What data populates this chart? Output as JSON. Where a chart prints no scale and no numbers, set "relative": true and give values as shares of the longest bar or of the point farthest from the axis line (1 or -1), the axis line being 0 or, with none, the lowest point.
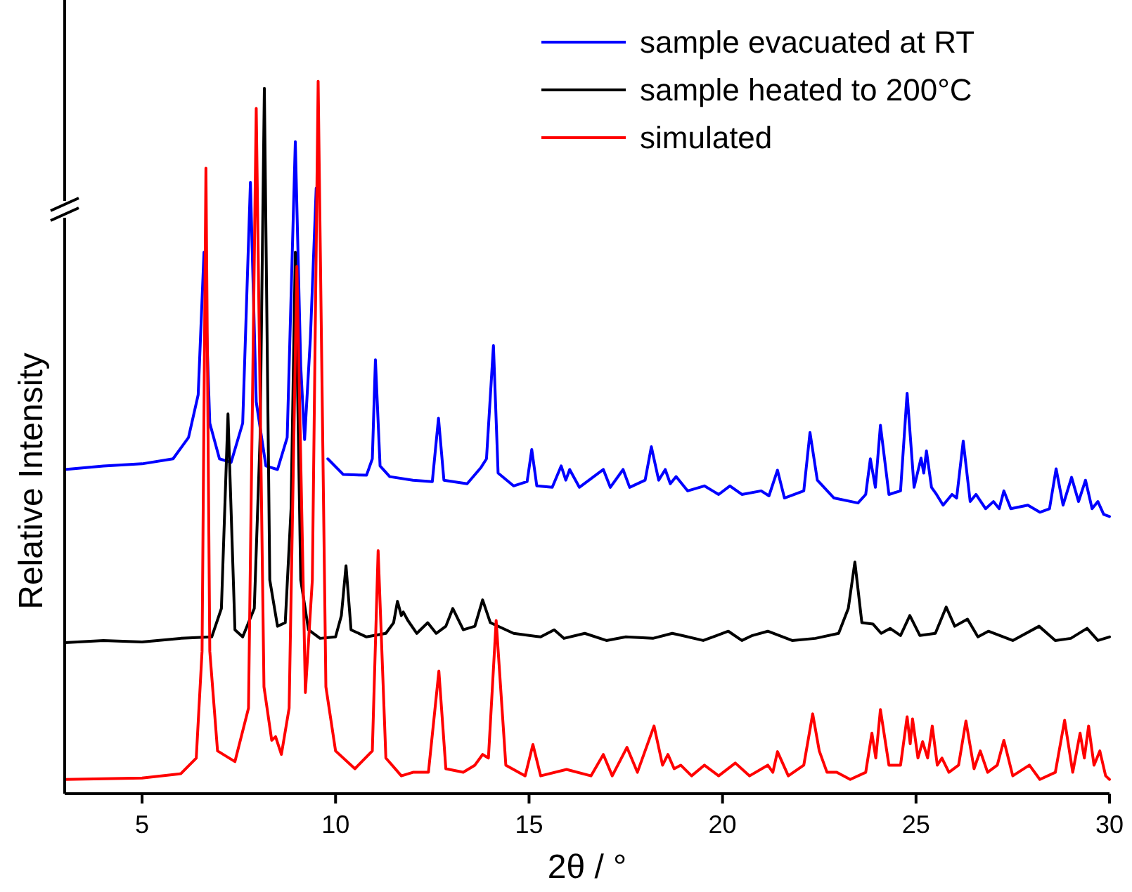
{
  "chart_data": {
    "type": "line",
    "relative": true,
    "xlabel": "2θ / °",
    "ylabel": "Relative Intensity",
    "xlim": [
      3,
      30
    ],
    "xticks": [
      5,
      10,
      15,
      20,
      25,
      30
    ],
    "legend": "top right",
    "tick_labels": "x",
    "series": [
      {
        "name": "sample evacuated at RT",
        "color": "#0000ff",
        "x": [
          3,
          4,
          5,
          5.8,
          6.2,
          6.45,
          6.6,
          6.75,
          7.0,
          7.3,
          7.6,
          7.8,
          7.95,
          8.2,
          8.5,
          8.75,
          8.96,
          9.1,
          9.2,
          9.35,
          9.5,
          9.65,
          9.8,
          10.2,
          10.8,
          10.95,
          11.03,
          11.15,
          11.4,
          12.0,
          12.5,
          12.66,
          12.8,
          13.4,
          13.76,
          13.9,
          14.08,
          14.2,
          14.6,
          14.95,
          15.07,
          15.2,
          15.6,
          15.83,
          15.95,
          16.05,
          16.3,
          16.92,
          17.1,
          17.43,
          17.6,
          18.0,
          18.16,
          18.35,
          18.52,
          18.65,
          18.8,
          19.1,
          19.53,
          19.9,
          20.19,
          20.5,
          21.0,
          21.2,
          21.42,
          21.6,
          22.1,
          22.26,
          22.45,
          22.88,
          23.5,
          23.7,
          23.82,
          23.95,
          24.08,
          24.3,
          24.6,
          24.77,
          24.95,
          25.13,
          25.2,
          25.27,
          25.4,
          25.53,
          25.7,
          25.93,
          26.05,
          26.22,
          26.4,
          26.55,
          26.8,
          27.0,
          27.15,
          27.27,
          27.45,
          27.89,
          28.2,
          28.45,
          28.62,
          28.8,
          29.02,
          29.2,
          29.38,
          29.55,
          29.7,
          29.85,
          30
        ],
        "values": [
          0.455,
          0.46,
          0.463,
          0.47,
          0.5,
          0.56,
          0.76,
          0.52,
          0.47,
          0.465,
          0.52,
          0.858,
          0.55,
          0.46,
          0.455,
          0.5,
          0.915,
          0.6,
          0.497,
          0.64,
          0.85,
          null,
          0.47,
          0.448,
          0.447,
          0.47,
          0.609,
          0.46,
          0.445,
          0.44,
          0.438,
          0.527,
          0.44,
          0.435,
          0.458,
          0.47,
          0.629,
          0.45,
          0.432,
          0.438,
          0.483,
          0.432,
          0.43,
          0.46,
          0.44,
          0.455,
          0.43,
          0.455,
          0.43,
          0.455,
          0.43,
          0.44,
          0.487,
          0.44,
          0.455,
          0.435,
          0.445,
          0.425,
          0.432,
          0.42,
          0.432,
          0.42,
          0.425,
          0.418,
          0.454,
          0.415,
          0.425,
          0.507,
          0.44,
          0.415,
          0.408,
          0.42,
          0.47,
          0.43,
          0.517,
          0.42,
          0.425,
          0.562,
          0.43,
          0.471,
          0.45,
          0.481,
          0.43,
          0.42,
          0.405,
          0.42,
          0.415,
          0.495,
          0.41,
          0.42,
          0.4,
          0.41,
          0.4,
          0.425,
          0.4,
          0.405,
          0.395,
          0.4,
          0.456,
          0.405,
          0.444,
          0.41,
          0.44,
          0.4,
          0.41,
          0.392,
          0.389
        ]
      },
      {
        "name": "sample heated to 200°C",
        "color": "#000000",
        "x": [
          3,
          4,
          5,
          6,
          6.8,
          7.05,
          7.22,
          7.4,
          7.6,
          7.9,
          8.05,
          8.16,
          8.3,
          8.5,
          8.7,
          8.85,
          8.96,
          9.1,
          9.3,
          9.6,
          10.0,
          10.15,
          10.27,
          10.4,
          10.8,
          11.3,
          11.5,
          11.6,
          11.7,
          11.75,
          11.87,
          12.1,
          12.38,
          12.6,
          12.85,
          13.03,
          13.3,
          13.6,
          13.8,
          14.0,
          14.6,
          15.3,
          15.65,
          15.9,
          16.44,
          17.0,
          17.5,
          18.2,
          18.7,
          18.95,
          19.5,
          20.15,
          20.5,
          20.77,
          21.17,
          21.8,
          22.4,
          23.0,
          23.25,
          23.42,
          23.6,
          23.89,
          24.1,
          24.33,
          24.6,
          24.84,
          25.1,
          25.5,
          25.78,
          26.0,
          26.33,
          26.6,
          26.87,
          27.5,
          28.18,
          28.6,
          29.0,
          29.42,
          29.7,
          30
        ],
        "values": [
          0.212,
          0.215,
          0.213,
          0.218,
          0.22,
          0.26,
          0.533,
          0.23,
          0.22,
          0.26,
          0.5,
          0.99,
          0.3,
          0.235,
          0.24,
          0.4,
          0.76,
          0.3,
          0.23,
          0.218,
          0.22,
          0.25,
          0.32,
          0.23,
          0.22,
          0.225,
          0.24,
          0.27,
          0.25,
          0.255,
          0.243,
          0.225,
          0.24,
          0.225,
          0.235,
          0.26,
          0.23,
          0.235,
          0.272,
          0.24,
          0.225,
          0.22,
          0.23,
          0.218,
          0.225,
          0.215,
          0.22,
          0.218,
          0.225,
          0.222,
          0.215,
          0.228,
          0.215,
          0.222,
          0.228,
          0.215,
          0.218,
          0.225,
          0.26,
          0.325,
          0.24,
          0.238,
          0.225,
          0.232,
          0.222,
          0.25,
          0.222,
          0.225,
          0.262,
          0.235,
          0.245,
          0.22,
          0.228,
          0.215,
          0.235,
          0.215,
          0.218,
          0.232,
          0.215,
          0.22
        ]
      },
      {
        "name": "simulated",
        "color": "#ff0000",
        "x": [
          3,
          5,
          6,
          6.4,
          6.55,
          6.65,
          6.75,
          6.95,
          7.4,
          7.75,
          7.95,
          8.15,
          8.35,
          8.45,
          8.6,
          8.8,
          9.0,
          9.22,
          9.4,
          9.55,
          9.75,
          10.0,
          10.5,
          10.95,
          11.1,
          11.3,
          11.7,
          12.0,
          12.4,
          12.67,
          12.85,
          13.3,
          13.6,
          13.8,
          13.95,
          14.15,
          14.4,
          14.9,
          15.1,
          15.3,
          15.97,
          16.6,
          16.92,
          17.15,
          17.53,
          17.8,
          18.23,
          18.45,
          18.59,
          18.75,
          18.92,
          19.2,
          19.53,
          19.9,
          20.33,
          20.7,
          21.17,
          21.3,
          21.42,
          21.7,
          22.1,
          22.33,
          22.5,
          22.7,
          22.95,
          23.3,
          23.7,
          23.86,
          23.96,
          24.08,
          24.3,
          24.6,
          24.77,
          24.85,
          24.91,
          25.05,
          25.17,
          25.3,
          25.42,
          25.55,
          25.67,
          25.85,
          26.1,
          26.29,
          26.5,
          26.66,
          26.85,
          27.1,
          27.27,
          27.5,
          27.93,
          28.2,
          28.6,
          28.84,
          29.05,
          29.24,
          29.35,
          29.46,
          29.6,
          29.75,
          29.9,
          30
        ],
        "values": [
          0.02,
          0.022,
          0.028,
          0.05,
          0.2,
          0.878,
          0.2,
          0.06,
          0.045,
          0.12,
          0.962,
          0.15,
          0.075,
          0.08,
          0.055,
          0.12,
          0.74,
          0.142,
          0.3,
          1.0,
          0.15,
          0.06,
          0.035,
          0.06,
          0.341,
          0.05,
          0.025,
          0.03,
          0.03,
          0.172,
          0.035,
          0.03,
          0.04,
          0.055,
          0.05,
          0.243,
          0.04,
          0.025,
          0.069,
          0.025,
          0.034,
          0.025,
          0.055,
          0.025,
          0.065,
          0.03,
          0.095,
          0.04,
          0.055,
          0.035,
          0.04,
          0.025,
          0.04,
          0.025,
          0.043,
          0.025,
          0.04,
          0.03,
          0.059,
          0.025,
          0.04,
          0.112,
          0.06,
          0.03,
          0.03,
          0.02,
          0.03,
          0.085,
          0.05,
          0.118,
          0.04,
          0.04,
          0.108,
          0.07,
          0.105,
          0.05,
          0.073,
          0.05,
          0.095,
          0.04,
          0.05,
          0.03,
          0.04,
          0.102,
          0.035,
          0.06,
          0.03,
          0.04,
          0.075,
          0.025,
          0.04,
          0.02,
          0.03,
          0.103,
          0.03,
          0.085,
          0.05,
          0.095,
          0.04,
          0.06,
          0.025,
          0.02
        ]
      }
    ]
  }
}
